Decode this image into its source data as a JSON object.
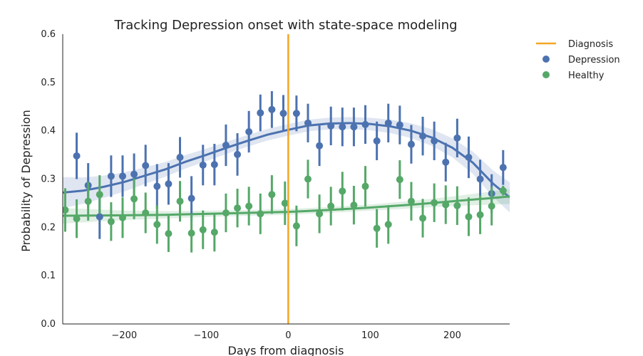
{
  "chart_data": {
    "type": "scatter",
    "title": "Tracking Depression onset with state-space modeling",
    "xlabel": "Days from diagnosis",
    "ylabel": "Probability of Depression",
    "xlim": [
      -275,
      270
    ],
    "ylim": [
      0.0,
      0.6
    ],
    "xticks": [
      {
        "value": -200,
        "label": "−200"
      },
      {
        "value": -100,
        "label": "−100"
      },
      {
        "value": 0,
        "label": "0"
      },
      {
        "value": 100,
        "label": "100"
      },
      {
        "value": 200,
        "label": "200"
      }
    ],
    "yticks": [
      {
        "value": 0.0,
        "label": "0.0"
      },
      {
        "value": 0.1,
        "label": "0.1"
      },
      {
        "value": 0.2,
        "label": "0.2"
      },
      {
        "value": 0.3,
        "label": "0.3"
      },
      {
        "value": 0.4,
        "label": "0.4"
      },
      {
        "value": 0.5,
        "label": "0.5"
      },
      {
        "value": 0.6,
        "label": "0.6"
      }
    ],
    "grid": false,
    "legend_position": "outside-top-right",
    "vline": {
      "x": 0,
      "name": "Diagnosis",
      "color": "#f5a623"
    },
    "series": [
      {
        "name": "Depression",
        "color": "#4c72b0",
        "points": [
          {
            "x": -258,
            "y": 0.348,
            "err": 0.048
          },
          {
            "x": -244,
            "y": 0.287,
            "err": 0.046
          },
          {
            "x": -230,
            "y": 0.222,
            "err": 0.046
          },
          {
            "x": -216,
            "y": 0.306,
            "err": 0.043
          },
          {
            "x": -202,
            "y": 0.306,
            "err": 0.043
          },
          {
            "x": -188,
            "y": 0.31,
            "err": 0.043
          },
          {
            "x": -174,
            "y": 0.328,
            "err": 0.043
          },
          {
            "x": -160,
            "y": 0.285,
            "err": 0.046
          },
          {
            "x": -146,
            "y": 0.29,
            "err": 0.043
          },
          {
            "x": -132,
            "y": 0.345,
            "err": 0.042
          },
          {
            "x": -118,
            "y": 0.26,
            "err": 0.046
          },
          {
            "x": -104,
            "y": 0.329,
            "err": 0.042
          },
          {
            "x": -90,
            "y": 0.33,
            "err": 0.043
          },
          {
            "x": -76,
            "y": 0.37,
            "err": 0.043
          },
          {
            "x": -62,
            "y": 0.351,
            "err": 0.044
          },
          {
            "x": -48,
            "y": 0.398,
            "err": 0.043
          },
          {
            "x": -34,
            "y": 0.437,
            "err": 0.038
          },
          {
            "x": -20,
            "y": 0.444,
            "err": 0.038
          },
          {
            "x": -6,
            "y": 0.436,
            "err": 0.038
          },
          {
            "x": 10,
            "y": 0.436,
            "err": 0.037
          },
          {
            "x": 24,
            "y": 0.416,
            "err": 0.04
          },
          {
            "x": 38,
            "y": 0.369,
            "err": 0.042
          },
          {
            "x": 52,
            "y": 0.41,
            "err": 0.04
          },
          {
            "x": 66,
            "y": 0.408,
            "err": 0.04
          },
          {
            "x": 80,
            "y": 0.408,
            "err": 0.04
          },
          {
            "x": 94,
            "y": 0.413,
            "err": 0.04
          },
          {
            "x": 108,
            "y": 0.379,
            "err": 0.04
          },
          {
            "x": 122,
            "y": 0.416,
            "err": 0.04
          },
          {
            "x": 136,
            "y": 0.412,
            "err": 0.04
          },
          {
            "x": 150,
            "y": 0.372,
            "err": 0.04
          },
          {
            "x": 164,
            "y": 0.389,
            "err": 0.04
          },
          {
            "x": 178,
            "y": 0.379,
            "err": 0.04
          },
          {
            "x": 192,
            "y": 0.335,
            "err": 0.04
          },
          {
            "x": 206,
            "y": 0.385,
            "err": 0.04
          },
          {
            "x": 220,
            "y": 0.345,
            "err": 0.043
          },
          {
            "x": 234,
            "y": 0.3,
            "err": 0.04
          },
          {
            "x": 248,
            "y": 0.27,
            "err": 0.04
          },
          {
            "x": 262,
            "y": 0.324,
            "err": 0.036
          }
        ],
        "fit": [
          {
            "x": -275,
            "y": 0.272
          },
          {
            "x": -250,
            "y": 0.276
          },
          {
            "x": -225,
            "y": 0.284
          },
          {
            "x": -200,
            "y": 0.294
          },
          {
            "x": -175,
            "y": 0.307
          },
          {
            "x": -150,
            "y": 0.32
          },
          {
            "x": -125,
            "y": 0.336
          },
          {
            "x": -100,
            "y": 0.35
          },
          {
            "x": -75,
            "y": 0.365
          },
          {
            "x": -50,
            "y": 0.379
          },
          {
            "x": -25,
            "y": 0.392
          },
          {
            "x": 0,
            "y": 0.402
          },
          {
            "x": 25,
            "y": 0.411
          },
          {
            "x": 50,
            "y": 0.415
          },
          {
            "x": 75,
            "y": 0.416
          },
          {
            "x": 100,
            "y": 0.414
          },
          {
            "x": 125,
            "y": 0.409
          },
          {
            "x": 150,
            "y": 0.4
          },
          {
            "x": 175,
            "y": 0.386
          },
          {
            "x": 200,
            "y": 0.365
          },
          {
            "x": 225,
            "y": 0.334
          },
          {
            "x": 250,
            "y": 0.29
          },
          {
            "x": 270,
            "y": 0.262
          }
        ]
      },
      {
        "name": "Healthy",
        "color": "#55a868",
        "points": [
          {
            "x": -272,
            "y": 0.236,
            "err": 0.045
          },
          {
            "x": -258,
            "y": 0.218,
            "err": 0.04
          },
          {
            "x": -244,
            "y": 0.254,
            "err": 0.04
          },
          {
            "x": -230,
            "y": 0.268,
            "err": 0.04
          },
          {
            "x": -216,
            "y": 0.212,
            "err": 0.04
          },
          {
            "x": -202,
            "y": 0.22,
            "err": 0.042
          },
          {
            "x": -188,
            "y": 0.259,
            "err": 0.042
          },
          {
            "x": -174,
            "y": 0.23,
            "err": 0.042
          },
          {
            "x": -160,
            "y": 0.206,
            "err": 0.04
          },
          {
            "x": -146,
            "y": 0.187,
            "err": 0.038
          },
          {
            "x": -132,
            "y": 0.254,
            "err": 0.042
          },
          {
            "x": -118,
            "y": 0.188,
            "err": 0.04
          },
          {
            "x": -104,
            "y": 0.195,
            "err": 0.04
          },
          {
            "x": -90,
            "y": 0.19,
            "err": 0.04
          },
          {
            "x": -76,
            "y": 0.23,
            "err": 0.04
          },
          {
            "x": -62,
            "y": 0.24,
            "err": 0.04
          },
          {
            "x": -48,
            "y": 0.244,
            "err": 0.04
          },
          {
            "x": -34,
            "y": 0.228,
            "err": 0.042
          },
          {
            "x": -20,
            "y": 0.268,
            "err": 0.04
          },
          {
            "x": -4,
            "y": 0.25,
            "err": 0.045
          },
          {
            "x": 10,
            "y": 0.203,
            "err": 0.042
          },
          {
            "x": 24,
            "y": 0.3,
            "err": 0.04
          },
          {
            "x": 38,
            "y": 0.228,
            "err": 0.04
          },
          {
            "x": 52,
            "y": 0.244,
            "err": 0.04
          },
          {
            "x": 66,
            "y": 0.275,
            "err": 0.04
          },
          {
            "x": 80,
            "y": 0.246,
            "err": 0.04
          },
          {
            "x": 94,
            "y": 0.285,
            "err": 0.042
          },
          {
            "x": 108,
            "y": 0.198,
            "err": 0.04
          },
          {
            "x": 122,
            "y": 0.206,
            "err": 0.04
          },
          {
            "x": 136,
            "y": 0.299,
            "err": 0.04
          },
          {
            "x": 150,
            "y": 0.254,
            "err": 0.04
          },
          {
            "x": 164,
            "y": 0.219,
            "err": 0.04
          },
          {
            "x": 178,
            "y": 0.251,
            "err": 0.04
          },
          {
            "x": 192,
            "y": 0.247,
            "err": 0.04
          },
          {
            "x": 206,
            "y": 0.245,
            "err": 0.04
          },
          {
            "x": 220,
            "y": 0.222,
            "err": 0.04
          },
          {
            "x": 234,
            "y": 0.226,
            "err": 0.04
          },
          {
            "x": 248,
            "y": 0.244,
            "err": 0.04
          },
          {
            "x": 262,
            "y": 0.276,
            "err": 0.01
          }
        ],
        "fit": [
          {
            "x": -275,
            "y": 0.224
          },
          {
            "x": -200,
            "y": 0.225
          },
          {
            "x": -150,
            "y": 0.226
          },
          {
            "x": -100,
            "y": 0.228
          },
          {
            "x": -50,
            "y": 0.23
          },
          {
            "x": 0,
            "y": 0.232
          },
          {
            "x": 50,
            "y": 0.236
          },
          {
            "x": 100,
            "y": 0.241
          },
          {
            "x": 150,
            "y": 0.247
          },
          {
            "x": 200,
            "y": 0.254
          },
          {
            "x": 250,
            "y": 0.261
          },
          {
            "x": 270,
            "y": 0.264
          }
        ]
      }
    ],
    "legend": [
      {
        "name": "Diagnosis",
        "kind": "line",
        "color": "#f5a623"
      },
      {
        "name": "Depression",
        "kind": "marker",
        "color": "#4c72b0"
      },
      {
        "name": "Healthy",
        "kind": "marker",
        "color": "#55a868"
      }
    ]
  }
}
